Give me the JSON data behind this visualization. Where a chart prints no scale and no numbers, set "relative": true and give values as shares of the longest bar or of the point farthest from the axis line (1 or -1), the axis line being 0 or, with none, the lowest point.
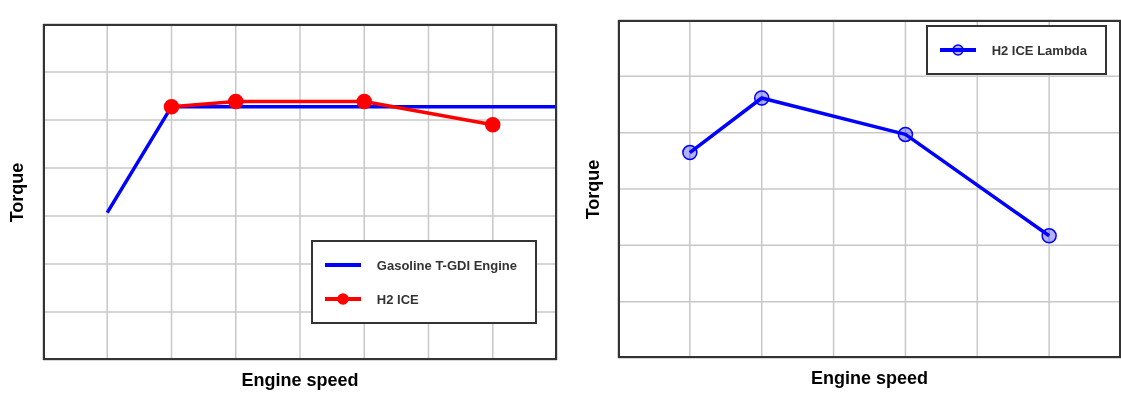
{
  "chart_data": [
    {
      "type": "line",
      "relative": true,
      "xlabel": "Engine speed",
      "ylabel": "Torque",
      "categories": [
        null,
        null,
        null,
        null,
        null,
        null,
        null,
        null,
        null
      ],
      "grid": true,
      "legend": "bottom right",
      "series": [
        {
          "name": "Gasoline T-GDI Engine",
          "color": "#0000ff",
          "marker": "none",
          "values": [
            null,
            0.57,
            0.98,
            0.98,
            0.98,
            0.98,
            0.98,
            0.98,
            0.98
          ]
        },
        {
          "name": "H2 ICE",
          "color": "#ff0000",
          "marker": "circle",
          "values": [
            null,
            null,
            0.98,
            1,
            null,
            1,
            null,
            0.91,
            null
          ]
        }
      ]
    },
    {
      "type": "line",
      "relative": true,
      "xlabel": "Engine speed",
      "ylabel": "Torque",
      "categories": [
        null,
        null,
        null,
        null,
        null,
        null,
        null,
        null
      ],
      "grid": true,
      "legend": "top right",
      "series": [
        {
          "name": "H2 ICE Lambda",
          "color": "#0000ff",
          "marker": "circle",
          "values": [
            null,
            0.79,
            1,
            null,
            0.86,
            null,
            0.47,
            null
          ]
        }
      ]
    }
  ]
}
